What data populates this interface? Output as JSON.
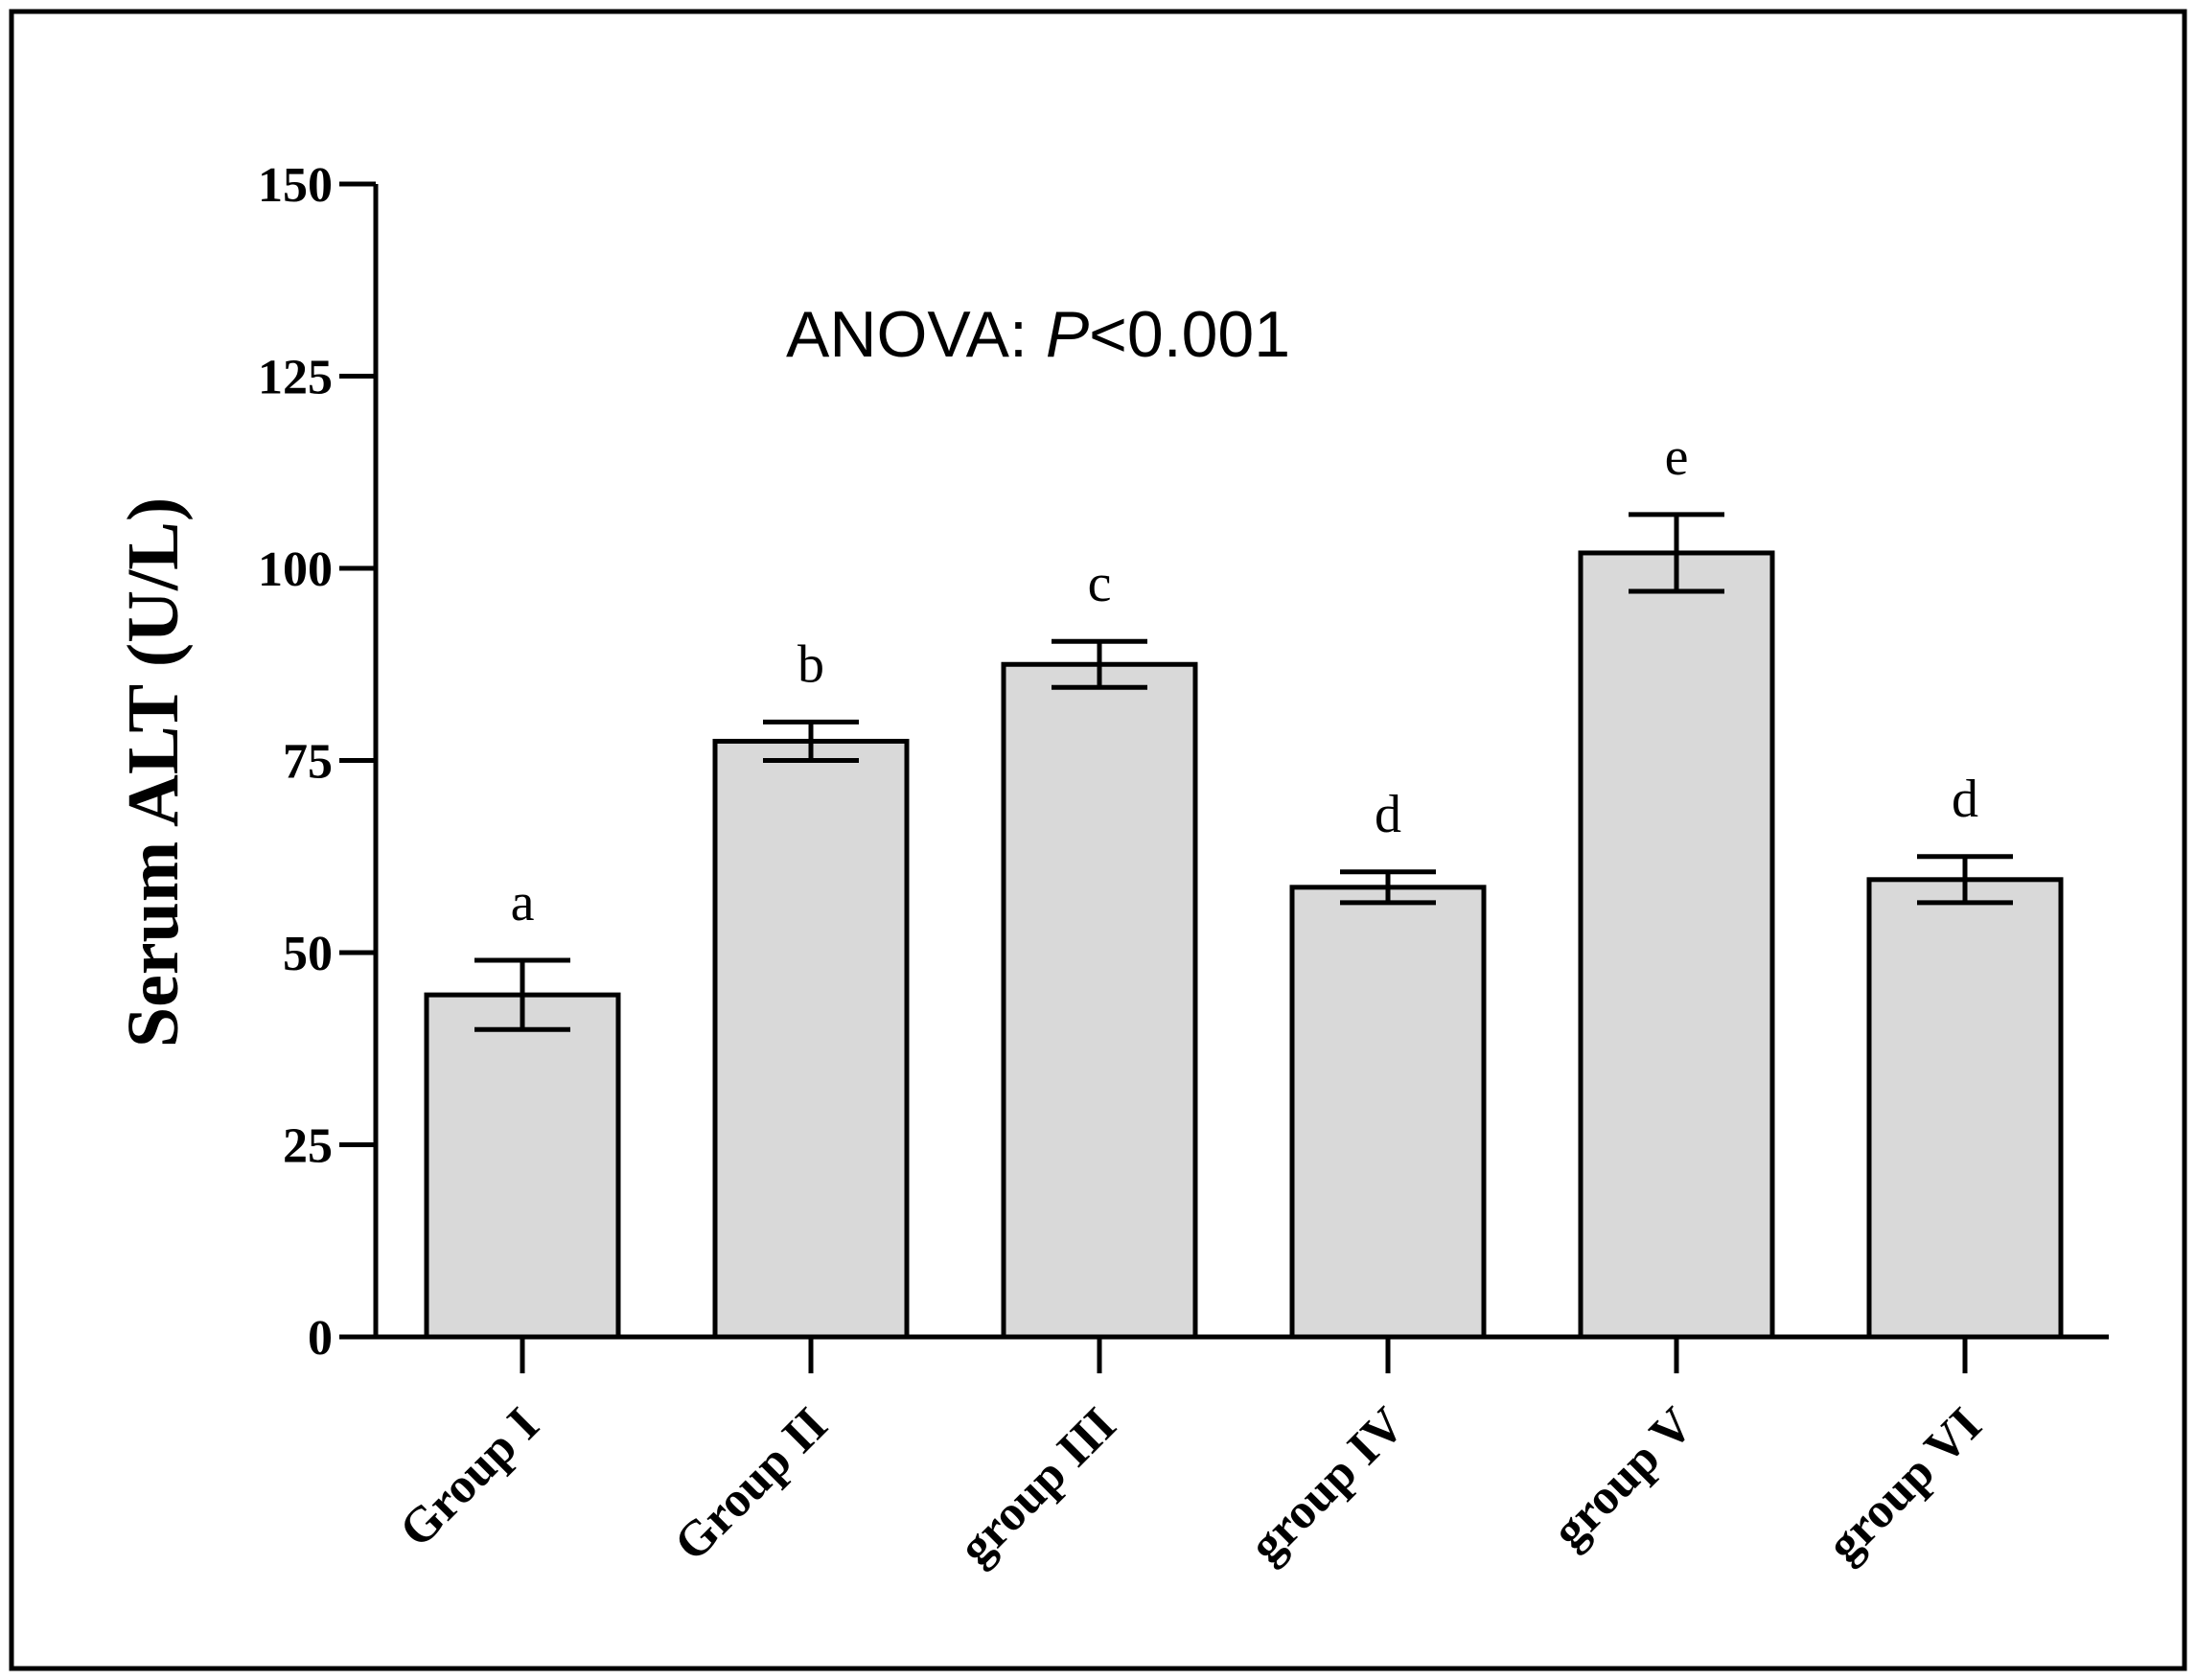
{
  "chart_data": {
    "type": "bar",
    "title": "",
    "annotation": {
      "prefix": "ANOVA: ",
      "p": "P",
      "suffix": "<0.001"
    },
    "xlabel": "",
    "ylabel": "Serum ALT (U/L)",
    "ylim": [
      0,
      150
    ],
    "yticks": [
      0,
      25,
      50,
      75,
      100,
      125,
      150
    ],
    "categories": [
      "Group I",
      "Group II",
      "group III",
      "group IV",
      "group V",
      "group VI"
    ],
    "values": [
      44.5,
      77.5,
      87.5,
      58.5,
      102,
      59.5
    ],
    "error": [
      4.5,
      2.5,
      3,
      2,
      5,
      3
    ],
    "significance_letters": [
      "a",
      "b",
      "c",
      "d",
      "e",
      "d"
    ],
    "grid": false,
    "legend": "none",
    "bar_color": "#d9d9d9",
    "edge_color": "#000000"
  }
}
